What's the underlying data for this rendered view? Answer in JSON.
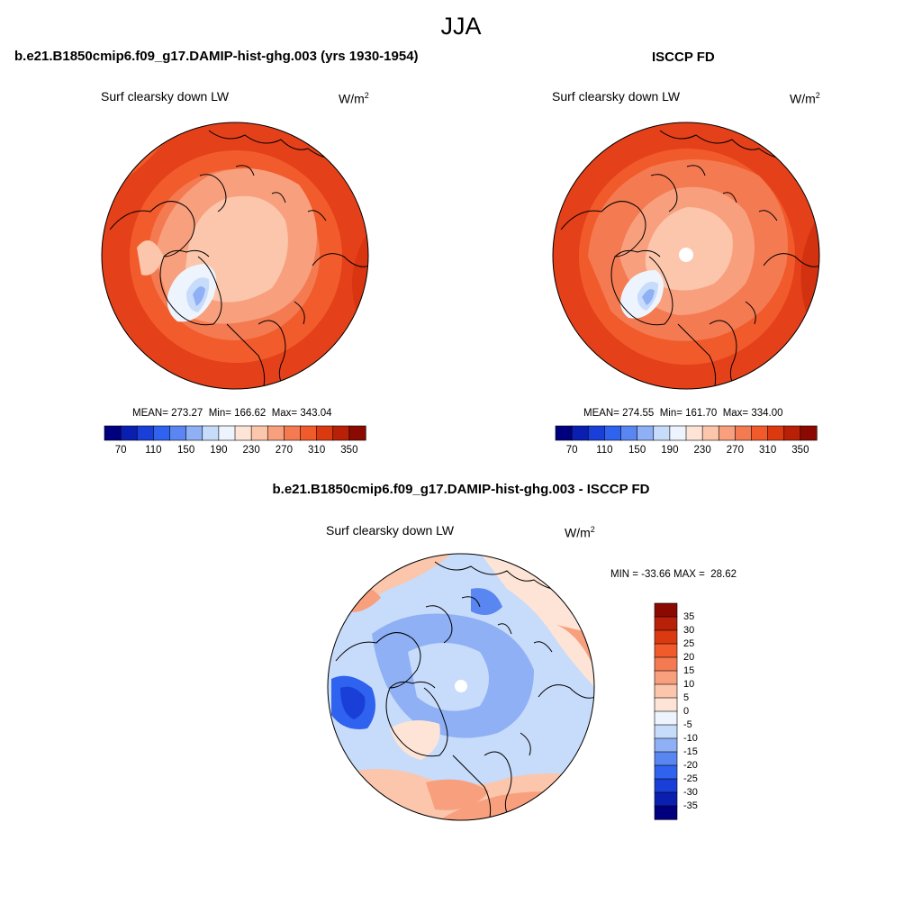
{
  "figure": {
    "season": "JJA"
  },
  "panels": {
    "model": {
      "header": "b.e21.B1850cmip6.f09_g17.DAMIP-hist-ghg.003 (yrs 1930-1954)",
      "variable": "Surf clearsky down LW",
      "units": "W/m",
      "units_exp": "2",
      "stats": "MEAN= 273.27  Min= 166.62  Max= 343.04"
    },
    "obs": {
      "header": "ISCCP FD",
      "variable": "Surf clearsky down LW",
      "units": "W/m",
      "units_exp": "2",
      "stats": "MEAN= 274.55  Min= 161.70  Max= 334.00"
    },
    "diff": {
      "header": "b.e21.B1850cmip6.f09_g17.DAMIP-hist-ghg.003 - ISCCP FD",
      "variable": "Surf clearsky down LW",
      "units": "W/m",
      "units_exp": "2",
      "stats": "MIN = -33.66 MAX =  28.62"
    }
  },
  "colorbar_abs": {
    "colors": [
      "#00007f",
      "#0a1fb0",
      "#1a3fd8",
      "#2f62ee",
      "#5a86f2",
      "#8fb0f5",
      "#c7dbfa",
      "#eef4fd",
      "#fde4d6",
      "#fbc6ac",
      "#f8a07e",
      "#f47a52",
      "#f15a2a",
      "#db3a10",
      "#b82008",
      "#8a0a02"
    ],
    "tick_labels": [
      "70",
      "110",
      "150",
      "190",
      "230",
      "270",
      "310",
      "350"
    ]
  },
  "colorbar_diff": {
    "colors": [
      "#8a0a02",
      "#b82008",
      "#db3a10",
      "#f15a2a",
      "#f47a52",
      "#f8a07e",
      "#fbc6ac",
      "#fde4d6",
      "#eef4fd",
      "#c7dbfa",
      "#8fb0f5",
      "#5a86f2",
      "#2f62ee",
      "#1a3fd8",
      "#0a1fb0",
      "#00007f"
    ],
    "tick_labels": [
      "35",
      "30",
      "25",
      "20",
      "15",
      "10",
      "5",
      "0",
      "-5",
      "-10",
      "-15",
      "-20",
      "-25",
      "-30",
      "-35"
    ]
  }
}
